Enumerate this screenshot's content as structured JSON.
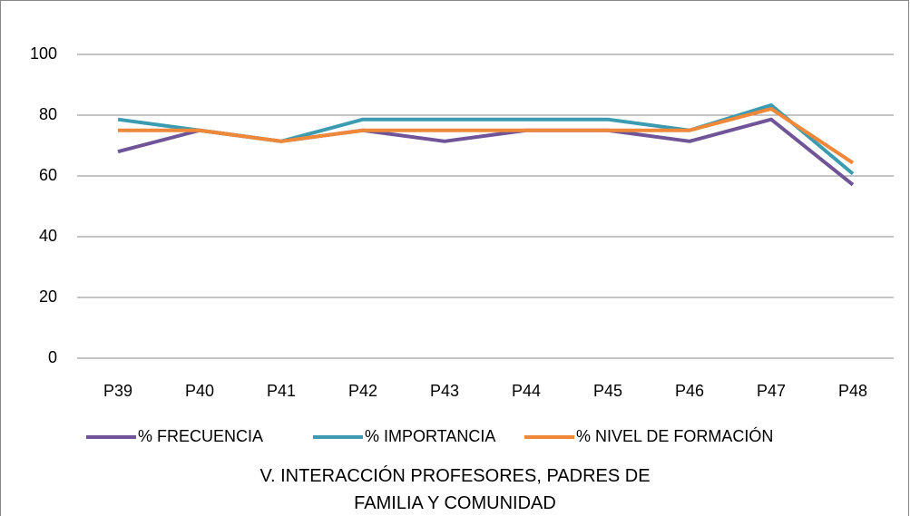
{
  "chart_data": {
    "type": "line",
    "title": "V. INTERACCIÓN PROFESORES, PADRES DE FAMILIA Y COMUNIDAD",
    "categories": [
      "P39",
      "P40",
      "P41",
      "P42",
      "P43",
      "P44",
      "P45",
      "P46",
      "P47",
      "P48"
    ],
    "series": [
      {
        "name": "% FRECUENCIA",
        "color": "#6f5597",
        "values": [
          68,
          75,
          71.4,
          75,
          71.4,
          75,
          75,
          71.4,
          78.6,
          57.1
        ]
      },
      {
        "name": "% IMPORTANCIA",
        "color": "#3c9bb0",
        "values": [
          78.6,
          75,
          71.4,
          78.6,
          78.6,
          78.6,
          78.6,
          75,
          83.3,
          60.7
        ]
      },
      {
        "name": "% NIVEL DE FORMACIÓN",
        "color": "#f0883a",
        "values": [
          75,
          75,
          71.4,
          75,
          75,
          75,
          75,
          75,
          82.1,
          64.3
        ]
      }
    ],
    "ylim": [
      0,
      100
    ],
    "yticks": [
      0,
      20,
      40,
      60,
      80,
      100
    ],
    "grid": true,
    "legend": "bottom"
  }
}
